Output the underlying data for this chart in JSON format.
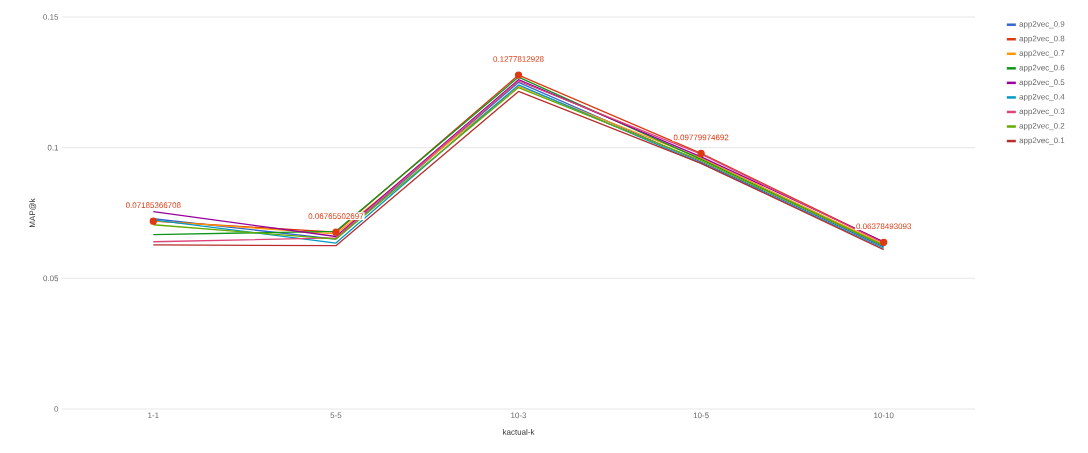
{
  "chart_data": {
    "type": "line",
    "xlabel": "kactual-k",
    "ylabel": "MAP@k",
    "categories": [
      "1-1",
      "5-5",
      "10-3",
      "10-5",
      "10-10"
    ],
    "ylim": [
      0,
      0.15
    ],
    "yticks": [
      0,
      0.05,
      0.1,
      0.15
    ],
    "grid": "y",
    "legend": "top right",
    "line_style": "solid",
    "series": [
      {
        "name": "app2vec_0.9",
        "color": "#3366cc",
        "values": [
          0.0728,
          0.065,
          0.125,
          0.0945,
          0.062
        ]
      },
      {
        "name": "app2vec_0.8",
        "color": "#dc3912",
        "marker": "circle",
        "values": [
          0.07185366708,
          0.06765502697,
          0.1277812928,
          0.09779974692,
          0.06378493093
        ],
        "value_labels": [
          "0.07185366708",
          "0.06765502697",
          "0.1277812928",
          "0.09779974692",
          "0.06378493093"
        ]
      },
      {
        "name": "app2vec_0.7",
        "color": "#ff9900",
        "values": [
          0.072,
          0.067,
          0.1235,
          0.096,
          0.063
        ]
      },
      {
        "name": "app2vec_0.6",
        "color": "#109618",
        "values": [
          0.0667,
          0.068,
          0.127,
          0.0955,
          0.0625
        ]
      },
      {
        "name": "app2vec_0.5",
        "color": "#990099",
        "values": [
          0.0755,
          0.066,
          0.126,
          0.0965,
          0.064
        ]
      },
      {
        "name": "app2vec_0.4",
        "color": "#0099c6",
        "values": [
          0.0724,
          0.0635,
          0.124,
          0.094,
          0.0615
        ]
      },
      {
        "name": "app2vec_0.3",
        "color": "#dd4477",
        "values": [
          0.064,
          0.0655,
          0.1255,
          0.0975,
          0.0635
        ]
      },
      {
        "name": "app2vec_0.2",
        "color": "#66aa00",
        "values": [
          0.0705,
          0.065,
          0.123,
          0.095,
          0.0625
        ]
      },
      {
        "name": "app2vec_0.1",
        "color": "#b82e2e",
        "values": [
          0.0628,
          0.0625,
          0.1215,
          0.094,
          0.061
        ]
      }
    ]
  }
}
